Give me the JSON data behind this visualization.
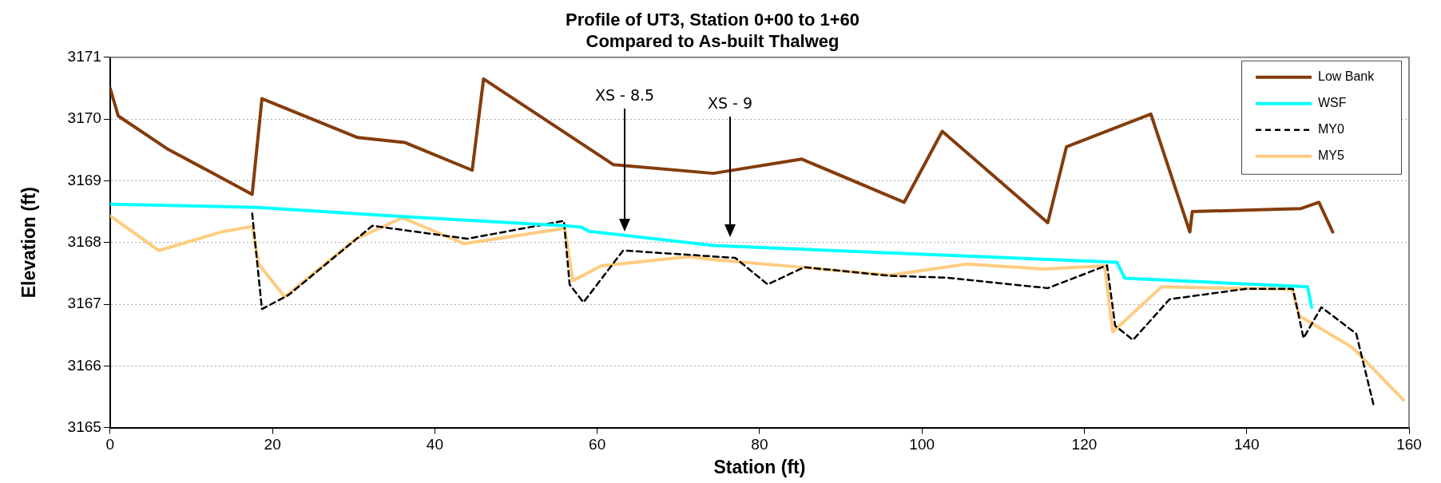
{
  "chart_data": {
    "type": "line",
    "title": "Profile of UT3, Station 0+00 to 1+60\nCompared to As-built Thalweg",
    "xlabel": "Station (ft)",
    "ylabel": "Elevation (ft)",
    "xlim": [
      0,
      160
    ],
    "xticks": [
      0,
      20,
      40,
      60,
      80,
      100,
      120,
      140,
      160
    ],
    "ylim": [
      3165,
      3171
    ],
    "yticks": [
      3165,
      3166,
      3167,
      3168,
      3169,
      3170,
      3171
    ],
    "grid": "y",
    "legend": "top right",
    "marker": "none",
    "annotations": [
      "XS - 8.5",
      "XS - 9"
    ],
    "series": [
      {
        "name": "Low Bank",
        "color": "#843c0c",
        "x": [
          0,
          1,
          7,
          17.5,
          18.7,
          30.5,
          36.3,
          44.6,
          46,
          62,
          74.3,
          85.2,
          97.8,
          102.5,
          115.5,
          117.8,
          128.2,
          133,
          133.3,
          146.7,
          148.9,
          150.6
        ],
        "values": [
          3170.5,
          3170.05,
          3169.52,
          3168.78,
          3170.33,
          3169.7,
          3169.62,
          3169.17,
          3170.65,
          3169.26,
          3169.12,
          3169.35,
          3168.65,
          3169.8,
          3168.32,
          3169.55,
          3170.08,
          3168.17,
          3168.5,
          3168.55,
          3168.65,
          3168.17
        ]
      },
      {
        "name": "WSF",
        "color": "#00ffff",
        "x": [
          0,
          18,
          36,
          56,
          58,
          59,
          74.3,
          124,
          125,
          147.5,
          148
        ],
        "values": [
          3168.62,
          3168.57,
          3168.42,
          3168.27,
          3168.25,
          3168.18,
          3167.95,
          3167.68,
          3167.42,
          3167.28,
          3166.95
        ]
      },
      {
        "name": "MY0",
        "color": "#000000",
        "line_style": "dashed",
        "x": [
          17.5,
          18.7,
          22,
          32.3,
          44,
          55.9,
          56.6,
          58.3,
          63.2,
          77,
          81,
          85.5,
          96,
          103,
          115.5,
          122.8,
          123.8,
          126,
          130.5,
          140,
          145.7,
          147,
          149.2,
          153.5,
          155.7
        ],
        "values": [
          3168.47,
          3166.92,
          3167.15,
          3168.27,
          3168.06,
          3168.35,
          3167.32,
          3167.03,
          3167.87,
          3167.75,
          3167.32,
          3167.6,
          3167.46,
          3167.43,
          3167.26,
          3167.63,
          3166.65,
          3166.42,
          3167.08,
          3167.25,
          3167.25,
          3166.45,
          3166.95,
          3166.52,
          3165.33
        ]
      },
      {
        "name": "MY5",
        "color": "#ffcc80",
        "x": [
          0,
          6,
          13.7,
          17.5,
          18.3,
          21.5,
          30.3,
          36,
          43.6,
          56,
          57,
          60.5,
          71.3,
          74.3,
          85,
          96,
          105.5,
          115,
          122.5,
          123.5,
          129.5,
          145.6,
          146.5,
          153,
          159.3
        ],
        "values": [
          3168.43,
          3167.87,
          3168.17,
          3168.26,
          3167.65,
          3167.12,
          3168.06,
          3168.4,
          3167.98,
          3168.23,
          3167.38,
          3167.62,
          3167.77,
          3167.72,
          3167.6,
          3167.47,
          3167.65,
          3167.57,
          3167.62,
          3166.55,
          3167.28,
          3167.24,
          3166.81,
          3166.3,
          3165.45
        ]
      }
    ]
  }
}
